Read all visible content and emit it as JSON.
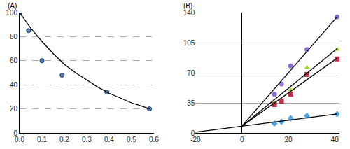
{
  "chart_data": [
    {
      "type": "scatter",
      "title": "(A)",
      "xlim": [
        0,
        0.6
      ],
      "xticks": [
        {
          "value": 0,
          "label": "0.0"
        },
        0.1,
        0.2,
        0.3,
        0.4,
        0.5,
        0.6
      ],
      "ylim": [
        0,
        100
      ],
      "yticks": [
        0,
        20,
        40,
        60,
        80,
        100
      ],
      "grid": true,
      "series": [
        {
          "type": "scatter",
          "marker": "circle",
          "color": "#4f81bd",
          "x": [
            0,
            0.04,
            0.1,
            0.19,
            0.39,
            0.58
          ],
          "values": [
            100,
            85,
            60,
            48,
            34,
            20
          ]
        },
        {
          "type": "line",
          "line_style": "solid",
          "color": "#000000",
          "x": [
            0,
            0.05,
            0.1,
            0.15,
            0.2,
            0.25,
            0.3,
            0.35,
            0.4,
            0.45,
            0.5,
            0.55,
            0.58
          ],
          "values": [
            100,
            87,
            76,
            66,
            57,
            50,
            44,
            38,
            33,
            29,
            25,
            22,
            20
          ]
        }
      ]
    },
    {
      "type": "scatter",
      "title": "(B)",
      "xlim": [
        -20,
        42
      ],
      "xticks": [
        -20,
        0,
        20,
        40
      ],
      "ylim": [
        0,
        140
      ],
      "yticks": [
        0,
        35,
        70,
        105,
        140
      ],
      "grid": true,
      "series": [
        {
          "type": "scatter",
          "marker": "circle",
          "color": "#8f6fdc",
          "x": [
            14,
            17,
            21,
            28,
            41
          ],
          "values": [
            45,
            57,
            78,
            97,
            135
          ]
        },
        {
          "type": "scatter",
          "marker": "triangle",
          "color": "#9ad61c",
          "x": [
            14,
            17,
            21,
            28,
            41
          ],
          "values": [
            35,
            38,
            50,
            76,
            97
          ]
        },
        {
          "type": "scatter",
          "marker": "square",
          "color": "#c0304a",
          "x": [
            14,
            17,
            21,
            28,
            41
          ],
          "values": [
            33,
            37,
            45,
            68,
            86
          ]
        },
        {
          "type": "scatter",
          "marker": "diamond",
          "color": "#4da3e3",
          "x": [
            14,
            17,
            21,
            28,
            41
          ],
          "values": [
            11,
            13,
            17,
            20,
            22
          ]
        },
        {
          "type": "line",
          "line_style": "solid",
          "color": "#000000",
          "x": [
            0,
            41
          ],
          "values": [
            8,
            135
          ]
        },
        {
          "type": "line",
          "line_style": "solid",
          "color": "#000000",
          "x": [
            0,
            41
          ],
          "values": [
            8,
            98
          ]
        },
        {
          "type": "line",
          "line_style": "solid",
          "color": "#000000",
          "x": [
            0,
            41
          ],
          "values": [
            8,
            87
          ]
        },
        {
          "type": "line",
          "line_style": "solid",
          "color": "#000000",
          "x": [
            -20,
            41
          ],
          "values": [
            1,
            22
          ]
        }
      ]
    }
  ]
}
